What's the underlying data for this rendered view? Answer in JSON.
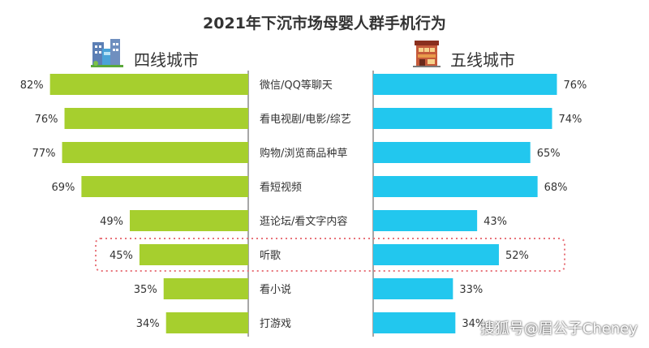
{
  "chart_data": {
    "type": "bar",
    "title": "2021年下沉市场母婴人群手机行为",
    "categories": [
      "微信/QQ等聊天",
      "看电视剧/电影/综艺",
      "购物/浏览商品种草",
      "看短视频",
      "逛论坛/看文字内容",
      "听歌",
      "看小说",
      "打游戏"
    ],
    "series": [
      {
        "name": "四线城市",
        "values": [
          82,
          76,
          77,
          69,
          49,
          45,
          35,
          34
        ],
        "labels": [
          "82%",
          "76%",
          "77%",
          "69%",
          "49%",
          "45%",
          "35%",
          "34%"
        ],
        "color": "#a6cf2e"
      },
      {
        "name": "五线城市",
        "values": [
          76,
          74,
          65,
          68,
          43,
          52,
          33,
          34
        ],
        "labels": [
          "76%",
          "74%",
          "65%",
          "68%",
          "43%",
          "52%",
          "33%",
          "34%"
        ],
        "color": "#22c7ee"
      }
    ],
    "highlighted_category": "听歌",
    "highlight_color": "#e8737a",
    "xlim": [
      0,
      100
    ],
    "grid": false,
    "legend": "top"
  },
  "icons": {
    "left_group_icon": "city-buildings-icon",
    "right_group_icon": "shop-building-icon"
  },
  "watermark": "搜狐号@眉公子Cheney"
}
